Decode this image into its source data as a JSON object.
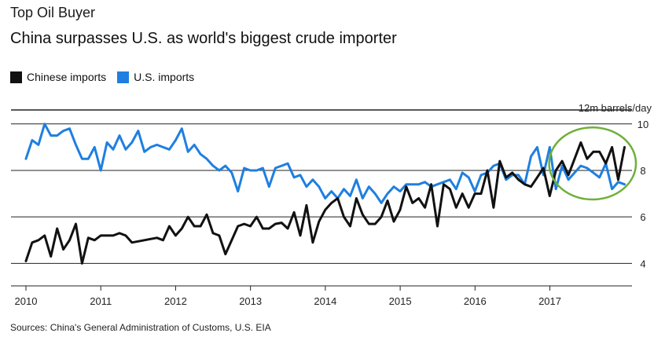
{
  "kicker": "Top Oil Buyer",
  "headline": "China surpasses U.S. as world's biggest crude importer",
  "unit_label": "12m barrels/day",
  "source": "Sources: China's General Administration of Customs, U.S. EIA",
  "colors": {
    "china": "#111111",
    "us": "#1f7fe0",
    "highlight": "#6fb03a",
    "grid": "#222222"
  },
  "chart_data": {
    "type": "line",
    "xlim": [
      2010.0,
      2017.95
    ],
    "ylim": [
      3.0,
      10.6
    ],
    "y_ticks": [
      4,
      6,
      8,
      10
    ],
    "x_ticks": [
      "2010",
      "2011",
      "2012",
      "2013",
      "2014",
      "2015",
      "2016",
      "2017"
    ],
    "highlight_ellipse": {
      "x_center": 2017.57,
      "y_center": 8.3,
      "x_radius": 0.58,
      "y_radius": 1.55
    },
    "series": [
      {
        "name": "Chinese imports",
        "color": "#111111",
        "x_start": 2010.0,
        "x_step": 0.0833,
        "values": [
          4.1,
          4.9,
          5.0,
          5.2,
          4.3,
          5.5,
          4.6,
          5.0,
          5.7,
          4.0,
          5.1,
          5.0,
          5.2,
          5.2,
          5.2,
          5.3,
          5.2,
          4.9,
          4.95,
          5.0,
          5.05,
          5.1,
          5.0,
          5.6,
          5.2,
          5.5,
          6.0,
          5.6,
          5.6,
          6.1,
          5.3,
          5.2,
          4.4,
          5.0,
          5.6,
          5.7,
          5.6,
          6.0,
          5.5,
          5.5,
          5.7,
          5.75,
          5.5,
          6.2,
          5.2,
          6.5,
          4.9,
          5.8,
          6.3,
          6.6,
          6.8,
          6.0,
          5.6,
          6.8,
          6.1,
          5.7,
          5.7,
          6.0,
          6.7,
          5.8,
          6.3,
          7.3,
          6.6,
          6.8,
          6.4,
          7.4,
          5.6,
          7.4,
          7.2,
          6.4,
          7.0,
          6.4,
          7.0,
          7.0,
          8.0,
          6.4,
          8.4,
          7.7,
          7.9,
          7.6,
          7.4,
          7.3,
          7.7,
          8.1,
          6.9,
          8.0,
          8.4,
          7.8,
          8.5,
          9.2,
          8.5,
          8.8,
          8.8,
          8.3,
          9.0,
          7.6,
          9.0
        ]
      },
      {
        "name": "U.S. imports",
        "color": "#1f7fe0",
        "x_start": 2010.0,
        "x_step": 0.0833,
        "values": [
          8.5,
          9.3,
          9.1,
          10.0,
          9.5,
          9.5,
          9.7,
          9.8,
          9.1,
          8.5,
          8.5,
          9.0,
          8.0,
          9.2,
          8.9,
          9.5,
          8.9,
          9.2,
          9.7,
          8.8,
          9.0,
          9.1,
          9.0,
          8.9,
          9.3,
          9.8,
          8.8,
          9.1,
          8.7,
          8.5,
          8.2,
          8.0,
          8.2,
          7.9,
          7.1,
          8.1,
          8.0,
          8.0,
          8.1,
          7.3,
          8.1,
          8.2,
          8.3,
          7.7,
          7.8,
          7.3,
          7.6,
          7.3,
          6.8,
          7.1,
          6.8,
          7.2,
          6.9,
          7.6,
          6.8,
          7.3,
          7.0,
          6.6,
          7.0,
          7.3,
          7.1,
          7.4,
          7.4,
          7.4,
          7.5,
          7.3,
          7.4,
          7.5,
          7.6,
          7.2,
          7.9,
          7.7,
          7.1,
          7.8,
          7.9,
          8.2,
          8.3,
          7.6,
          7.8,
          7.8,
          7.4,
          8.6,
          9.0,
          7.8,
          9.0,
          7.2,
          8.2,
          7.6,
          7.9,
          8.2,
          8.1,
          7.9,
          7.7,
          8.3,
          7.2,
          7.5,
          7.4
        ]
      }
    ]
  }
}
